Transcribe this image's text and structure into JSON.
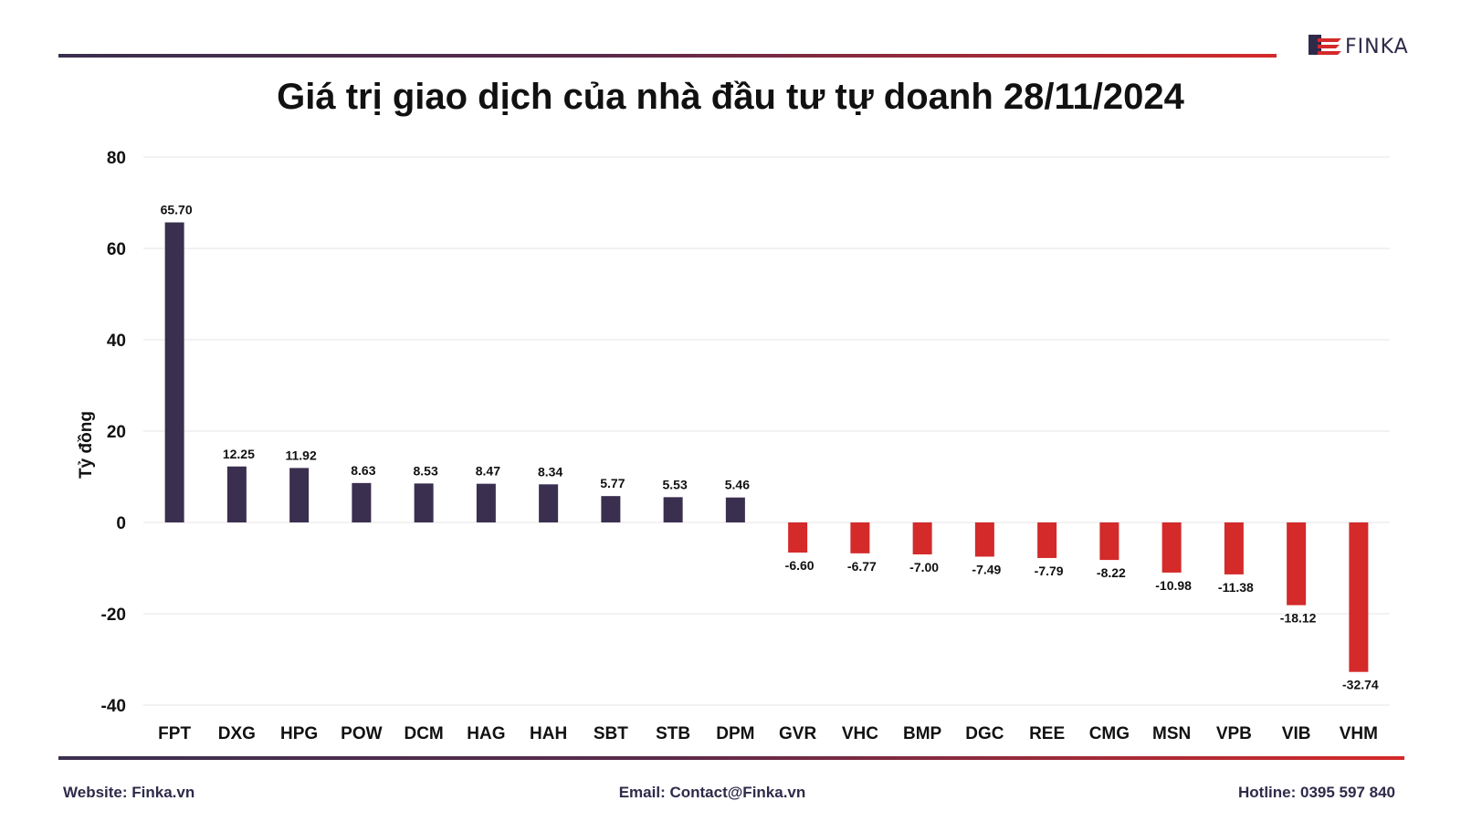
{
  "brand": {
    "logo_text": "FINKA",
    "logo_icon": "finka-flag-logo"
  },
  "title": "Giá trị giao dịch của nhà đầu tư tự doanh 28/11/2024",
  "footer": {
    "website": "Website: Finka.vn",
    "email": "Email: Contact@Finka.vn",
    "hotline": "Hotline: 0395 597 840"
  },
  "colors": {
    "positive": "#3b2f4f",
    "negative": "#d42a2a",
    "grid": "#e6e6e6"
  },
  "chart_data": {
    "type": "bar",
    "title": "Giá trị giao dịch của nhà đầu tư tự doanh 28/11/2024",
    "xlabel": "",
    "ylabel": "Tỷ đồng",
    "ylim": [
      -40,
      80
    ],
    "yticks": [
      80,
      60,
      40,
      20,
      0,
      -20,
      -40
    ],
    "grid": true,
    "legend": "none",
    "categories": [
      "FPT",
      "DXG",
      "HPG",
      "POW",
      "DCM",
      "HAG",
      "HAH",
      "SBT",
      "STB",
      "DPM",
      "GVR",
      "VHC",
      "BMP",
      "DGC",
      "REE",
      "CMG",
      "MSN",
      "VPB",
      "VIB",
      "VHM"
    ],
    "values": [
      65.7,
      12.25,
      11.92,
      8.63,
      8.53,
      8.47,
      8.34,
      5.77,
      5.53,
      5.46,
      -6.6,
      -6.77,
      -7.0,
      -7.49,
      -7.79,
      -8.22,
      -10.98,
      -11.38,
      -18.12,
      -32.74
    ],
    "labels": [
      "65.70",
      "12.25",
      "11.92",
      "8.63",
      "8.53",
      "8.47",
      "8.34",
      "5.77",
      "5.53",
      "5.46",
      "-6.60",
      "-6.77",
      "-7.00",
      "-7.49",
      "-7.79",
      "-8.22",
      "-10.98",
      "-11.38",
      "-18.12",
      "-32.74"
    ]
  }
}
